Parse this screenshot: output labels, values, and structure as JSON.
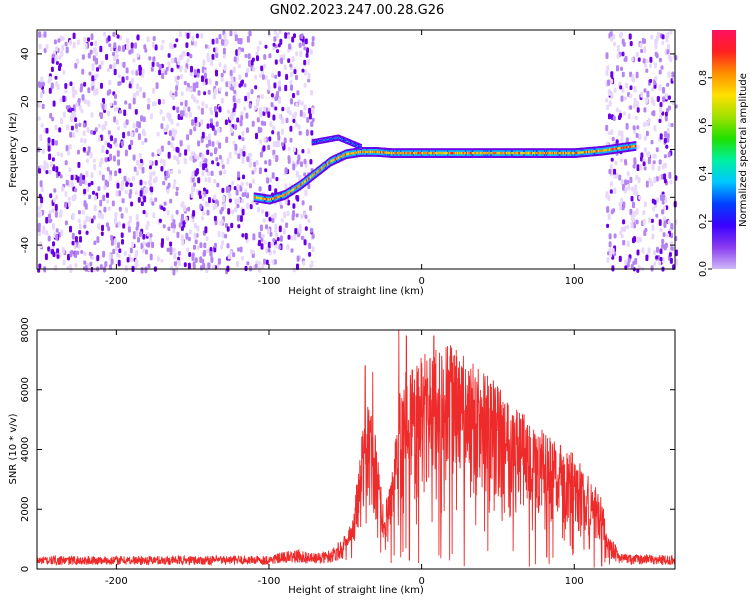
{
  "figure_title": "GN02.2023.247.00.28.G26",
  "colors": {
    "frame": "#000000",
    "snr_line": "#ee2a2a",
    "spectrum_light": "#e8d8fb",
    "spectrum_mid": "#b585f2",
    "spectrum_dark": "#6a00e8"
  },
  "chart_data": [
    {
      "id": "spectrogram",
      "type": "heatmap",
      "xlabel": "Height of straight line (km)",
      "ylabel": "Frequency (Hz)",
      "xlim": [
        -252,
        166
      ],
      "ylim": [
        -50,
        50
      ],
      "x_ticks": [
        -200,
        -100,
        0,
        100
      ],
      "y_ticks": [
        -40,
        -20,
        0,
        20,
        40
      ],
      "grid": false,
      "colorbar": {
        "label": "Normalized spectral amplitude",
        "range": [
          0,
          1
        ],
        "ticks": [
          0.0,
          0.2,
          0.4,
          0.6,
          0.8
        ],
        "colormap": [
          "#cfb8f7",
          "#8a3cf0",
          "#3b00ff",
          "#0040ff",
          "#00c8ff",
          "#00f0a0",
          "#20e000",
          "#a0e000",
          "#ffe000",
          "#ff9000",
          "#ff2020",
          "#ff1060"
        ]
      },
      "features": [
        {
          "name": "noise",
          "x_range": [
            -252,
            -72
          ],
          "f_range": [
            -50,
            50
          ],
          "amplitude": 0.15
        },
        {
          "name": "noise",
          "x_range": [
            120,
            166
          ],
          "f_range": [
            -50,
            50
          ],
          "amplitude": 0.12
        },
        {
          "name": "signal_track",
          "points": [
            [
              -110,
              -20
            ],
            [
              -100,
              -21
            ],
            [
              -90,
              -19
            ],
            [
              -80,
              -15
            ],
            [
              -70,
              -10
            ],
            [
              -60,
              -5
            ],
            [
              -50,
              -2
            ],
            [
              -40,
              -1
            ],
            [
              -30,
              -1
            ],
            [
              -20,
              -1.5
            ],
            [
              0,
              -1.5
            ],
            [
              50,
              -1.5
            ],
            [
              100,
              -1.5
            ],
            [
              118,
              -0.5
            ],
            [
              140,
              1.5
            ]
          ],
          "amplitude": 0.9
        },
        {
          "name": "spur",
          "points": [
            [
              -72,
              3
            ],
            [
              -55,
              5
            ],
            [
              -40,
              1
            ]
          ],
          "amplitude": 0.35
        }
      ]
    },
    {
      "id": "snr",
      "type": "line",
      "xlabel": "Height of straight line (km)",
      "ylabel": "SNR (10 * v/v)",
      "xlim": [
        -252,
        166
      ],
      "ylim": [
        0,
        8000
      ],
      "x_ticks": [
        -200,
        -100,
        0,
        100
      ],
      "y_ticks": [
        0,
        2000,
        4000,
        6000,
        8000
      ],
      "grid": false,
      "series": [
        {
          "color": "#ee2a2a",
          "envelope": [
            [
              -252,
              330
            ],
            [
              -100,
              350
            ],
            [
              -90,
              450
            ],
            [
              -80,
              500
            ],
            [
              -70,
              400
            ],
            [
              -60,
              500
            ],
            [
              -50,
              900
            ],
            [
              -45,
              1600
            ],
            [
              -40,
              3800
            ],
            [
              -35,
              5300
            ],
            [
              -30,
              4000
            ],
            [
              -25,
              1900
            ],
            [
              -20,
              2600
            ],
            [
              -15,
              5500
            ],
            [
              -10,
              6200
            ],
            [
              -5,
              6300
            ],
            [
              0,
              6600
            ],
            [
              10,
              6700
            ],
            [
              20,
              6900
            ],
            [
              30,
              6400
            ],
            [
              40,
              6000
            ],
            [
              50,
              5700
            ],
            [
              60,
              5200
            ],
            [
              70,
              4600
            ],
            [
              80,
              4200
            ],
            [
              90,
              3800
            ],
            [
              100,
              3500
            ],
            [
              110,
              2800
            ],
            [
              118,
              2200
            ],
            [
              122,
              1000
            ],
            [
              130,
              400
            ],
            [
              166,
              350
            ]
          ],
          "spikes": [
            [
              -37,
              6800
            ],
            [
              -32,
              6600
            ],
            [
              -15,
              8200
            ],
            [
              -10,
              7800
            ],
            [
              0,
              6900
            ],
            [
              8,
              7800
            ],
            [
              45,
              6200
            ],
            [
              60,
              5400
            ]
          ],
          "dips": [
            [
              -20,
              200
            ],
            [
              -8,
              300
            ],
            [
              -2,
              200
            ],
            [
              20,
              500
            ],
            [
              60,
              600
            ],
            [
              82,
              400
            ],
            [
              118,
              100
            ]
          ]
        }
      ]
    }
  ]
}
